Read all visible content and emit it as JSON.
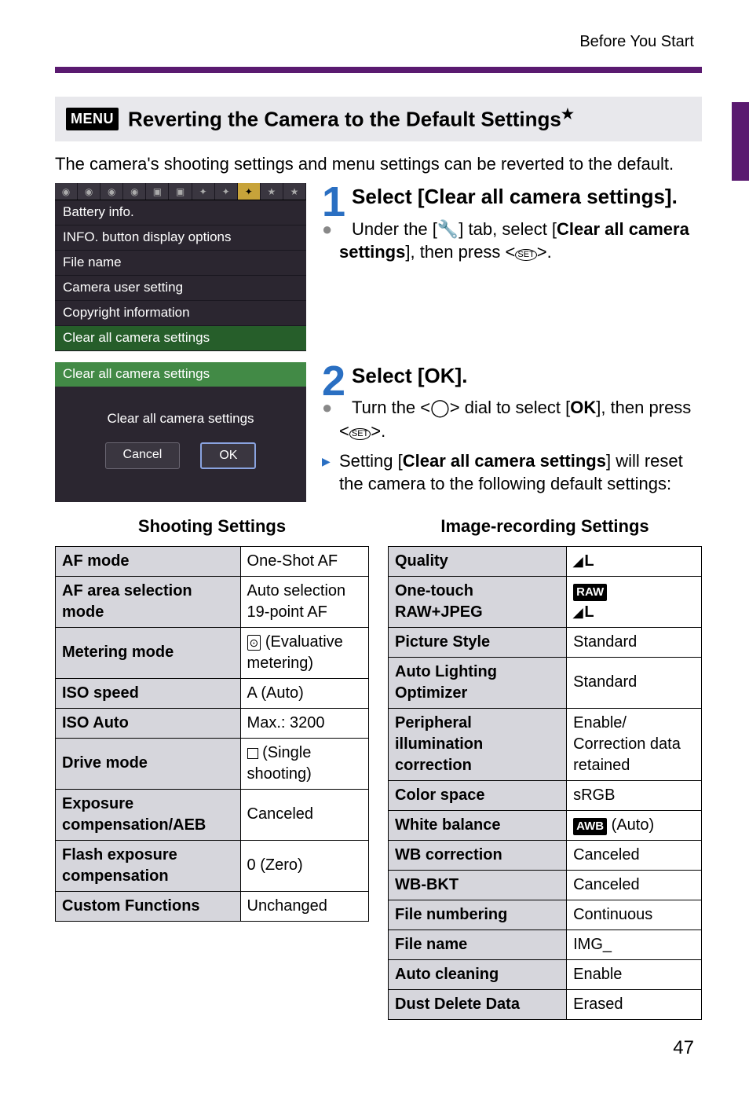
{
  "header": {
    "breadcrumb": "Before You Start"
  },
  "section_title": {
    "menu_label": "MENU",
    "text": "Reverting the Camera to the Default Settings",
    "star": "★"
  },
  "intro": "The camera's shooting settings and menu settings can be reverted to the default.",
  "screenshot1": {
    "items": [
      "Battery info.",
      "INFO. button display options",
      "File name",
      "Camera user setting",
      "Copyright information",
      "Clear all camera settings"
    ],
    "selected_index": 5
  },
  "screenshot2": {
    "title": "Clear all camera settings",
    "body": "Clear all camera settings",
    "cancel": "Cancel",
    "ok": "OK"
  },
  "step1": {
    "num": "1",
    "heading": "Select [Clear all camera settings].",
    "bullet_a_pre": "Under the [",
    "bullet_a_icon": "🔧",
    "bullet_a_mid": "] tab, select [",
    "bullet_a_bold": "Clear all camera settings",
    "bullet_a_end": "], then press <",
    "bullet_a_close": ">."
  },
  "step2": {
    "num": "2",
    "heading": "Select [OK].",
    "bullet_a_pre": "Turn the <",
    "bullet_a_dial": "◯",
    "bullet_a_mid": "> dial to select [",
    "bullet_a_ok": "OK",
    "bullet_a_end": "], then press <",
    "bullet_a_close": ">.",
    "bullet_b_pre": "Setting [",
    "bullet_b_bold": "Clear all camera settings",
    "bullet_b_end": "] will reset the camera to the following default settings:"
  },
  "tables": {
    "left_title": "Shooting Settings",
    "right_title": "Image-recording Settings",
    "left": [
      {
        "k": "AF mode",
        "v": "One-Shot AF"
      },
      {
        "k": "AF area selection mode",
        "v": "Auto selection 19-point AF"
      },
      {
        "k": "Metering mode",
        "v_html": "metering_mode"
      },
      {
        "k": "ISO speed",
        "v": "A (Auto)"
      },
      {
        "k": "ISO Auto",
        "v": "Max.: 3200"
      },
      {
        "k": "Drive mode",
        "v_html": "drive_mode"
      },
      {
        "k": "Exposure compensation/AEB",
        "v": "Canceled"
      },
      {
        "k": "Flash exposure compensation",
        "v": "0 (Zero)"
      },
      {
        "k": "Custom Functions",
        "v": "Unchanged"
      }
    ],
    "right": [
      {
        "k": "Quality",
        "v_html": "quality"
      },
      {
        "k": "One-touch RAW+JPEG",
        "v_html": "rawjpeg"
      },
      {
        "k": "Picture Style",
        "v": "Standard"
      },
      {
        "k": "Auto Lighting Optimizer",
        "v": "Standard"
      },
      {
        "k": "Peripheral illumination correction",
        "v": "Enable/\nCorrection data retained"
      },
      {
        "k": "Color space",
        "v": "sRGB"
      },
      {
        "k": "White balance",
        "v_html": "wb"
      },
      {
        "k": "WB correction",
        "v": "Canceled"
      },
      {
        "k": "WB-BKT",
        "v": "Canceled"
      },
      {
        "k": "File numbering",
        "v": "Continuous"
      },
      {
        "k": "File name",
        "v": "IMG_"
      },
      {
        "k": "Auto cleaning",
        "v": "Enable"
      },
      {
        "k": "Dust Delete Data",
        "v": "Erased"
      }
    ],
    "html_cells": {
      "metering_mode": "<span style='display:inline-block;border:1.2px solid #000;border-radius:2px;padding:0 2px;font-size:14px;'>⊙</span> (Evaluative metering)",
      "drive_mode": "<span class='glyph-box'></span> (Single shooting)",
      "quality": "<b class='quarter-L'>L</b>",
      "rawjpeg": "<span class='raw-badge'>RAW</span><br><b class='quarter-L'>L</b>",
      "wb": "<span class='awb-badge'>AWB</span> (Auto)"
    }
  },
  "page_num": "47"
}
